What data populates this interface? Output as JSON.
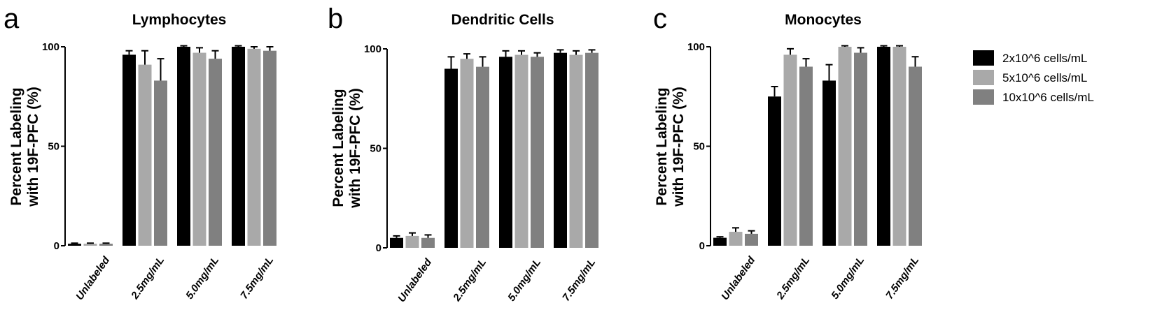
{
  "legend": [
    {
      "label": "2x10^6 cells/mL",
      "color": "#000000"
    },
    {
      "label": "5x10^6 cells/mL",
      "color": "#a9a9a9"
    },
    {
      "label": "10x10^6 cells/mL",
      "color": "#808080"
    }
  ],
  "chart_data": [
    {
      "type": "bar",
      "panel_label": "a",
      "title": "Lymphocytes",
      "ylabel": "Percent Labeling\nwith 19F-PFC  (%)",
      "ylim": [
        0,
        100
      ],
      "yticks": [
        0,
        50,
        100
      ],
      "categories": [
        "Unlabeled",
        "2.5mg/mL",
        "5.0mg/mL",
        "7.5mg/mL"
      ],
      "series": [
        {
          "name": "2x10^6 cells/mL",
          "values": [
            1,
            96,
            100,
            100
          ],
          "errors": [
            0.3,
            2,
            0.5,
            0.5
          ]
        },
        {
          "name": "5x10^6 cells/mL",
          "values": [
            1,
            91,
            97,
            99
          ],
          "errors": [
            0.3,
            7,
            2.5,
            1
          ]
        },
        {
          "name": "10x10^6 cells/mL",
          "values": [
            1,
            83,
            94,
            98
          ],
          "errors": [
            0.3,
            11,
            4,
            2
          ]
        }
      ]
    },
    {
      "type": "bar",
      "panel_label": "b",
      "title": "Dendritic Cells",
      "ylabel": "Percent Labeling\nwith 19F-PFC  (%)",
      "ylim": [
        0,
        100
      ],
      "yticks": [
        0,
        50,
        100
      ],
      "categories": [
        "Unlabeled",
        "2.5mg/mL",
        "5.0mg/mL",
        "7.5mg/mL"
      ],
      "series": [
        {
          "name": "2x10^6 cells/mL",
          "values": [
            5,
            90,
            96,
            98
          ],
          "errors": [
            1,
            6,
            3,
            1.5
          ]
        },
        {
          "name": "5x10^6 cells/mL",
          "values": [
            6,
            95,
            97,
            97
          ],
          "errors": [
            1.5,
            2.5,
            2,
            2
          ]
        },
        {
          "name": "10x10^6 cells/mL",
          "values": [
            5,
            91,
            96,
            98
          ],
          "errors": [
            1.5,
            5,
            2,
            1.5
          ]
        }
      ]
    },
    {
      "type": "bar",
      "panel_label": "c",
      "title": "Monocytes",
      "ylabel": "Percent Labeling\nwith 19F-PFC  (%)",
      "ylim": [
        0,
        100
      ],
      "yticks": [
        0,
        50,
        100
      ],
      "categories": [
        "Unlabeled",
        "2.5mg/mL",
        "5.0mg/mL",
        "7.5mg/mL"
      ],
      "series": [
        {
          "name": "2x10^6 cells/mL",
          "values": [
            4,
            75,
            83,
            100
          ],
          "errors": [
            0.5,
            5,
            8,
            0.5
          ]
        },
        {
          "name": "5x10^6 cells/mL",
          "values": [
            7,
            96,
            100,
            100
          ],
          "errors": [
            2,
            3,
            0.5,
            0.5
          ]
        },
        {
          "name": "10x10^6 cells/mL",
          "values": [
            6,
            90,
            97,
            90
          ],
          "errors": [
            1.5,
            4,
            2.5,
            5
          ]
        }
      ]
    }
  ]
}
